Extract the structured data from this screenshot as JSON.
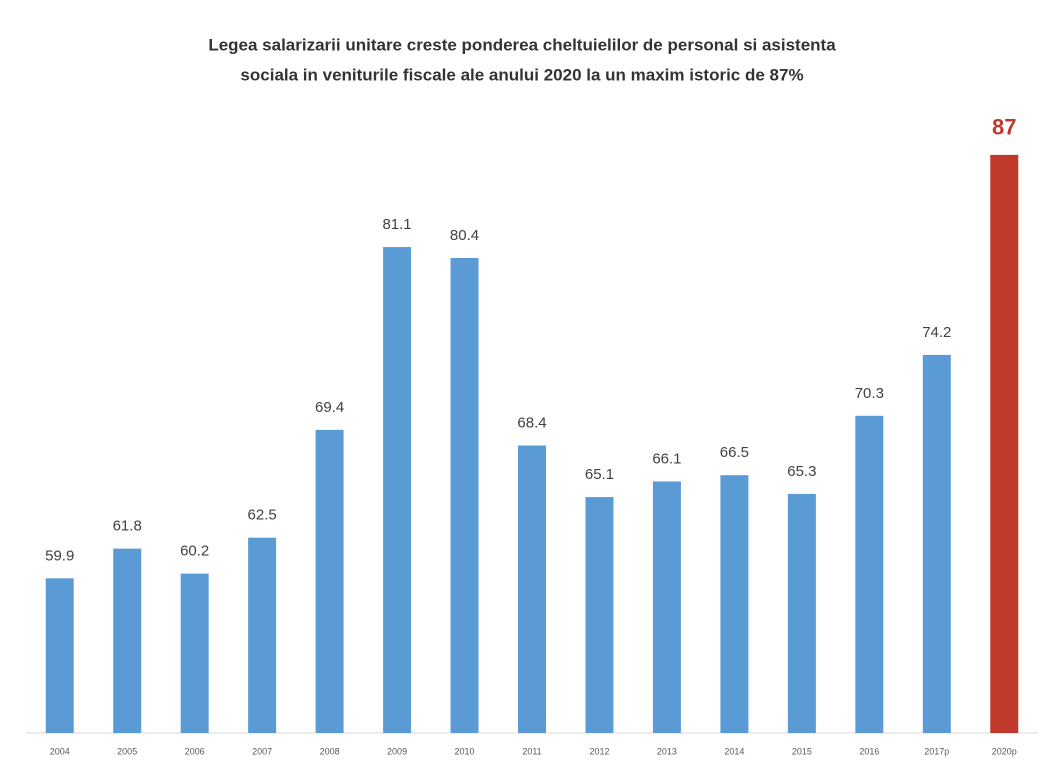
{
  "chart_data": {
    "type": "bar",
    "title": [
      "Legea salarizarii unitare creste ponderea cheltuielilor de personal si asistenta",
      "sociala in veniturile fiscale ale anului 2020 la un maxim istoric de 87%"
    ],
    "categories": [
      "2004",
      "2005",
      "2006",
      "2007",
      "2008",
      "2009",
      "2010",
      "2011",
      "2012",
      "2013",
      "2014",
      "2015",
      "2016",
      "2017p",
      "2020p"
    ],
    "values": [
      59.9,
      61.8,
      60.2,
      62.5,
      69.4,
      81.1,
      80.4,
      68.4,
      65.1,
      66.1,
      66.5,
      65.3,
      70.3,
      74.2,
      87
    ],
    "colors": [
      "#5b9bd5",
      "#5b9bd5",
      "#5b9bd5",
      "#5b9bd5",
      "#5b9bd5",
      "#5b9bd5",
      "#5b9bd5",
      "#5b9bd5",
      "#5b9bd5",
      "#5b9bd5",
      "#5b9bd5",
      "#5b9bd5",
      "#5b9bd5",
      "#5b9bd5",
      "#c0392b"
    ],
    "ylim": [
      50,
      90
    ]
  }
}
